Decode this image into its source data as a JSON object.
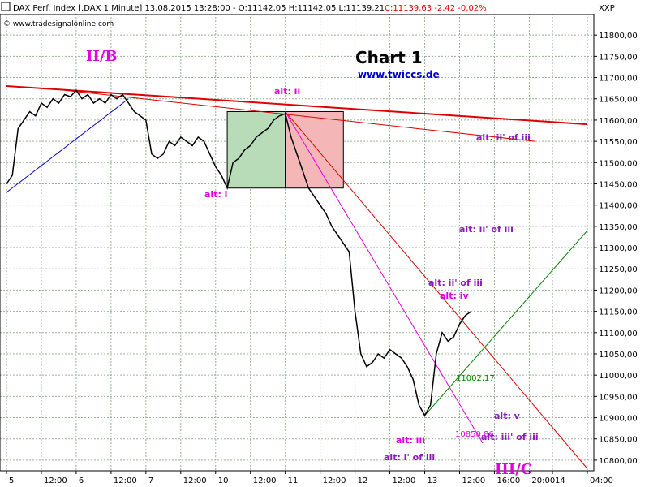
{
  "header": {
    "title": "DAX Perf. Index [.DAX  1 Minute]  13.08.2015 13:28:00 - O:11142,05 H:11142,05 L:11139,21",
    "change": "C:11139,63 -2,42 -0,02%",
    "website": "© www.tradesignalonline.com",
    "symbol": "XXP"
  },
  "labels": {
    "chart_title": "Chart 1",
    "site": "www.twiccs.de",
    "wave_iib": "II/B",
    "wave_iiic": "III/C",
    "alt_ii": "alt: ii",
    "alt_i": "alt: i",
    "alt_ii_of_iii_top": "alt: ii' of iii",
    "alt_ii_of_iii_mid": "alt: ii' of iii",
    "alt_ii_of_iii_low": "alt: ii' of iii",
    "alt_iv": "alt: iv",
    "alt_iii": "alt: iii",
    "alt_i_of_iii": "alt: i' of iii",
    "alt_v": "alt: v",
    "alt_iii_of_iii": "alt: iii' of iii",
    "level_11002": "11002,17",
    "level_10850": "10850,86"
  },
  "colors": {
    "grid": "#9ab09a",
    "price": "#000000",
    "resistance": "#e00000",
    "magenta": "#e000e0",
    "green_line": "#008000",
    "blue_line": "#0000cc",
    "purple": "#8b1ab8",
    "green_box": "#b8dcb8",
    "red_box": "#f4b6b6"
  },
  "chart_data": {
    "type": "line",
    "title": "Chart 1",
    "xlabel": "",
    "ylabel": "",
    "ylim": [
      10775,
      11850
    ],
    "y_ticks": [
      10800,
      10850,
      10900,
      10950,
      11000,
      11050,
      11100,
      11150,
      11200,
      11250,
      11300,
      11350,
      11400,
      11450,
      11500,
      11550,
      11600,
      11650,
      11700,
      11750,
      11800
    ],
    "y_tick_labels": [
      "10800,00",
      "10850,00",
      "10900,00",
      "10950,00",
      "11000,00",
      "11050,00",
      "11100,00",
      "11150,00",
      "11200,00",
      "11250,00",
      "11300,00",
      "11350,00",
      "11400,00",
      "11450,00",
      "11500,00",
      "11550,00",
      "11600,00",
      "11650,00",
      "11700,00",
      "11750,00",
      "11800,00"
    ],
    "x_ticks": [
      {
        "x": 0,
        "label": "5"
      },
      {
        "x": 6,
        "label": "12:00"
      },
      {
        "x": 12,
        "label": "6"
      },
      {
        "x": 18,
        "label": "12:00"
      },
      {
        "x": 24,
        "label": "7"
      },
      {
        "x": 30,
        "label": "12:00"
      },
      {
        "x": 36,
        "label": "10"
      },
      {
        "x": 42,
        "label": "12:00"
      },
      {
        "x": 48,
        "label": "11"
      },
      {
        "x": 54,
        "label": "12:00"
      },
      {
        "x": 60,
        "label": "12"
      },
      {
        "x": 66,
        "label": "12:00"
      },
      {
        "x": 72,
        "label": "13"
      },
      {
        "x": 78,
        "label": "12:00"
      },
      {
        "x": 84,
        "label": "16:00"
      },
      {
        "x": 90,
        "label": "20:00"
      },
      {
        "x": 94,
        "label": "14"
      },
      {
        "x": 100,
        "label": "04:00"
      }
    ],
    "series": [
      {
        "kind": "price",
        "values": [
          [
            0,
            11450
          ],
          [
            1,
            11470
          ],
          [
            2,
            11580
          ],
          [
            3,
            11600
          ],
          [
            4,
            11620
          ],
          [
            5,
            11610
          ],
          [
            6,
            11640
          ],
          [
            7,
            11630
          ],
          [
            8,
            11650
          ],
          [
            9,
            11640
          ],
          [
            10,
            11660
          ],
          [
            11,
            11655
          ],
          [
            12,
            11670
          ],
          [
            13,
            11650
          ],
          [
            14,
            11660
          ],
          [
            15,
            11640
          ],
          [
            16,
            11650
          ],
          [
            17,
            11640
          ],
          [
            18,
            11660
          ],
          [
            19,
            11650
          ],
          [
            20,
            11660
          ],
          [
            21,
            11640
          ],
          [
            22,
            11620
          ],
          [
            23,
            11610
          ],
          [
            24,
            11600
          ],
          [
            25,
            11520
          ],
          [
            26,
            11510
          ],
          [
            27,
            11520
          ],
          [
            28,
            11550
          ],
          [
            29,
            11540
          ],
          [
            30,
            11560
          ],
          [
            31,
            11550
          ],
          [
            32,
            11540
          ],
          [
            33,
            11560
          ],
          [
            34,
            11550
          ],
          [
            35,
            11520
          ],
          [
            36,
            11490
          ],
          [
            37,
            11470
          ],
          [
            38,
            11440
          ],
          [
            39,
            11500
          ],
          [
            40,
            11510
          ],
          [
            41,
            11530
          ],
          [
            42,
            11540
          ],
          [
            43,
            11560
          ],
          [
            44,
            11570
          ],
          [
            45,
            11580
          ],
          [
            46,
            11600
          ],
          [
            47,
            11610
          ],
          [
            48,
            11615
          ],
          [
            49,
            11560
          ],
          [
            50,
            11520
          ],
          [
            51,
            11480
          ],
          [
            52,
            11440
          ],
          [
            53,
            11420
          ],
          [
            54,
            11400
          ],
          [
            55,
            11380
          ],
          [
            56,
            11350
          ],
          [
            57,
            11330
          ],
          [
            58,
            11310
          ],
          [
            59,
            11290
          ],
          [
            60,
            11150
          ],
          [
            61,
            11050
          ],
          [
            62,
            11020
          ],
          [
            63,
            11030
          ],
          [
            64,
            11050
          ],
          [
            65,
            11040
          ],
          [
            66,
            11060
          ],
          [
            67,
            11050
          ],
          [
            68,
            11040
          ],
          [
            69,
            11020
          ],
          [
            70,
            10990
          ],
          [
            71,
            10930
          ],
          [
            72,
            10905
          ],
          [
            73,
            10930
          ],
          [
            74,
            11050
          ],
          [
            75,
            11100
          ],
          [
            76,
            11080
          ],
          [
            77,
            11090
          ],
          [
            78,
            11120
          ],
          [
            79,
            11140
          ],
          [
            80,
            11150
          ]
        ]
      }
    ],
    "lines": [
      {
        "name": "",
        "from": [
          0,
          11680
        ],
        "to": [
          100,
          11590
        ],
        "color": "resistance",
        "width": 2
      },
      {
        "name": "",
        "from": [
          10,
          11670
        ],
        "to": [
          91,
          11550
        ],
        "color": "resistance",
        "width": 1
      },
      {
        "name": "",
        "from": [
          48,
          11620
        ],
        "to": [
          100,
          10780
        ],
        "color": "resistance",
        "width": 1
      },
      {
        "name": "",
        "from": [
          48,
          11620
        ],
        "to": [
          82,
          10840
        ],
        "color": "magenta",
        "width": 1
      },
      {
        "name": "",
        "from": [
          72,
          10905
        ],
        "to": [
          100,
          11340
        ],
        "color": "green_line",
        "width": 1
      },
      {
        "name": "",
        "from": [
          0,
          11430
        ],
        "to": [
          21,
          11650
        ],
        "color": "blue_line",
        "width": 1
      }
    ],
    "boxes": [
      {
        "from": [
          38,
          11440
        ],
        "to": [
          48,
          11620
        ],
        "color": "green_box"
      },
      {
        "from": [
          48,
          11440
        ],
        "to": [
          58,
          11620
        ],
        "color": "red_box"
      }
    ]
  }
}
